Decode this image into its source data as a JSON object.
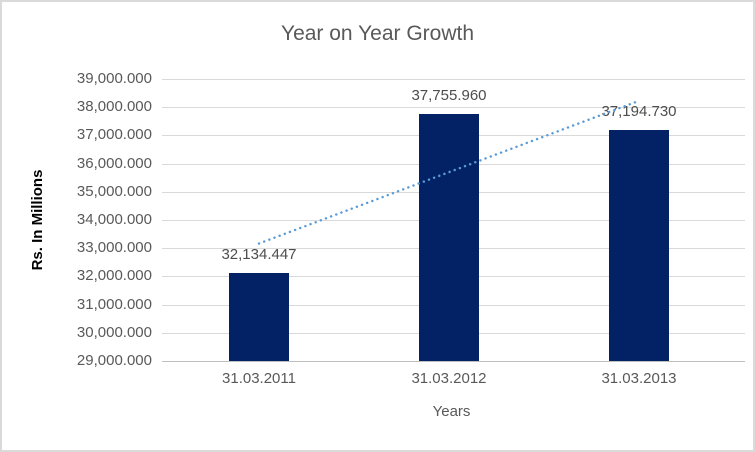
{
  "chart_data": {
    "type": "bar",
    "title": "Year on Year Growth",
    "xlabel": "Years",
    "ylabel": "Rs. In Millions",
    "categories": [
      "31.03.2011",
      "31.03.2012",
      "31.03.2013"
    ],
    "values": [
      32134.447,
      37755.96,
      37194.73
    ],
    "data_labels": [
      "32,134.447",
      "37,755.960",
      "37,194.730"
    ],
    "ylim": [
      29000,
      39000
    ],
    "ytick_step": 1000,
    "ytick_labels": [
      "39,000.000",
      "38,000.000",
      "37,000.000",
      "36,000.000",
      "35,000.000",
      "34,000.000",
      "33,000.000",
      "32,000.000",
      "31,000.000",
      "30,000.000",
      "29,000.000"
    ],
    "grid": true,
    "legend": false,
    "trendline": {
      "type": "linear",
      "style": "dotted"
    },
    "colors": {
      "bar": "#032266",
      "trendline": "#5B9BD5",
      "gridline": "#D9D9D9",
      "axis_line": "#BFBFBF",
      "text": "#595959",
      "data_label_text": "#4d4d4d",
      "y_axis_title_text": "#000000",
      "border": "#DADADA",
      "background": "#FFFFFF"
    }
  }
}
